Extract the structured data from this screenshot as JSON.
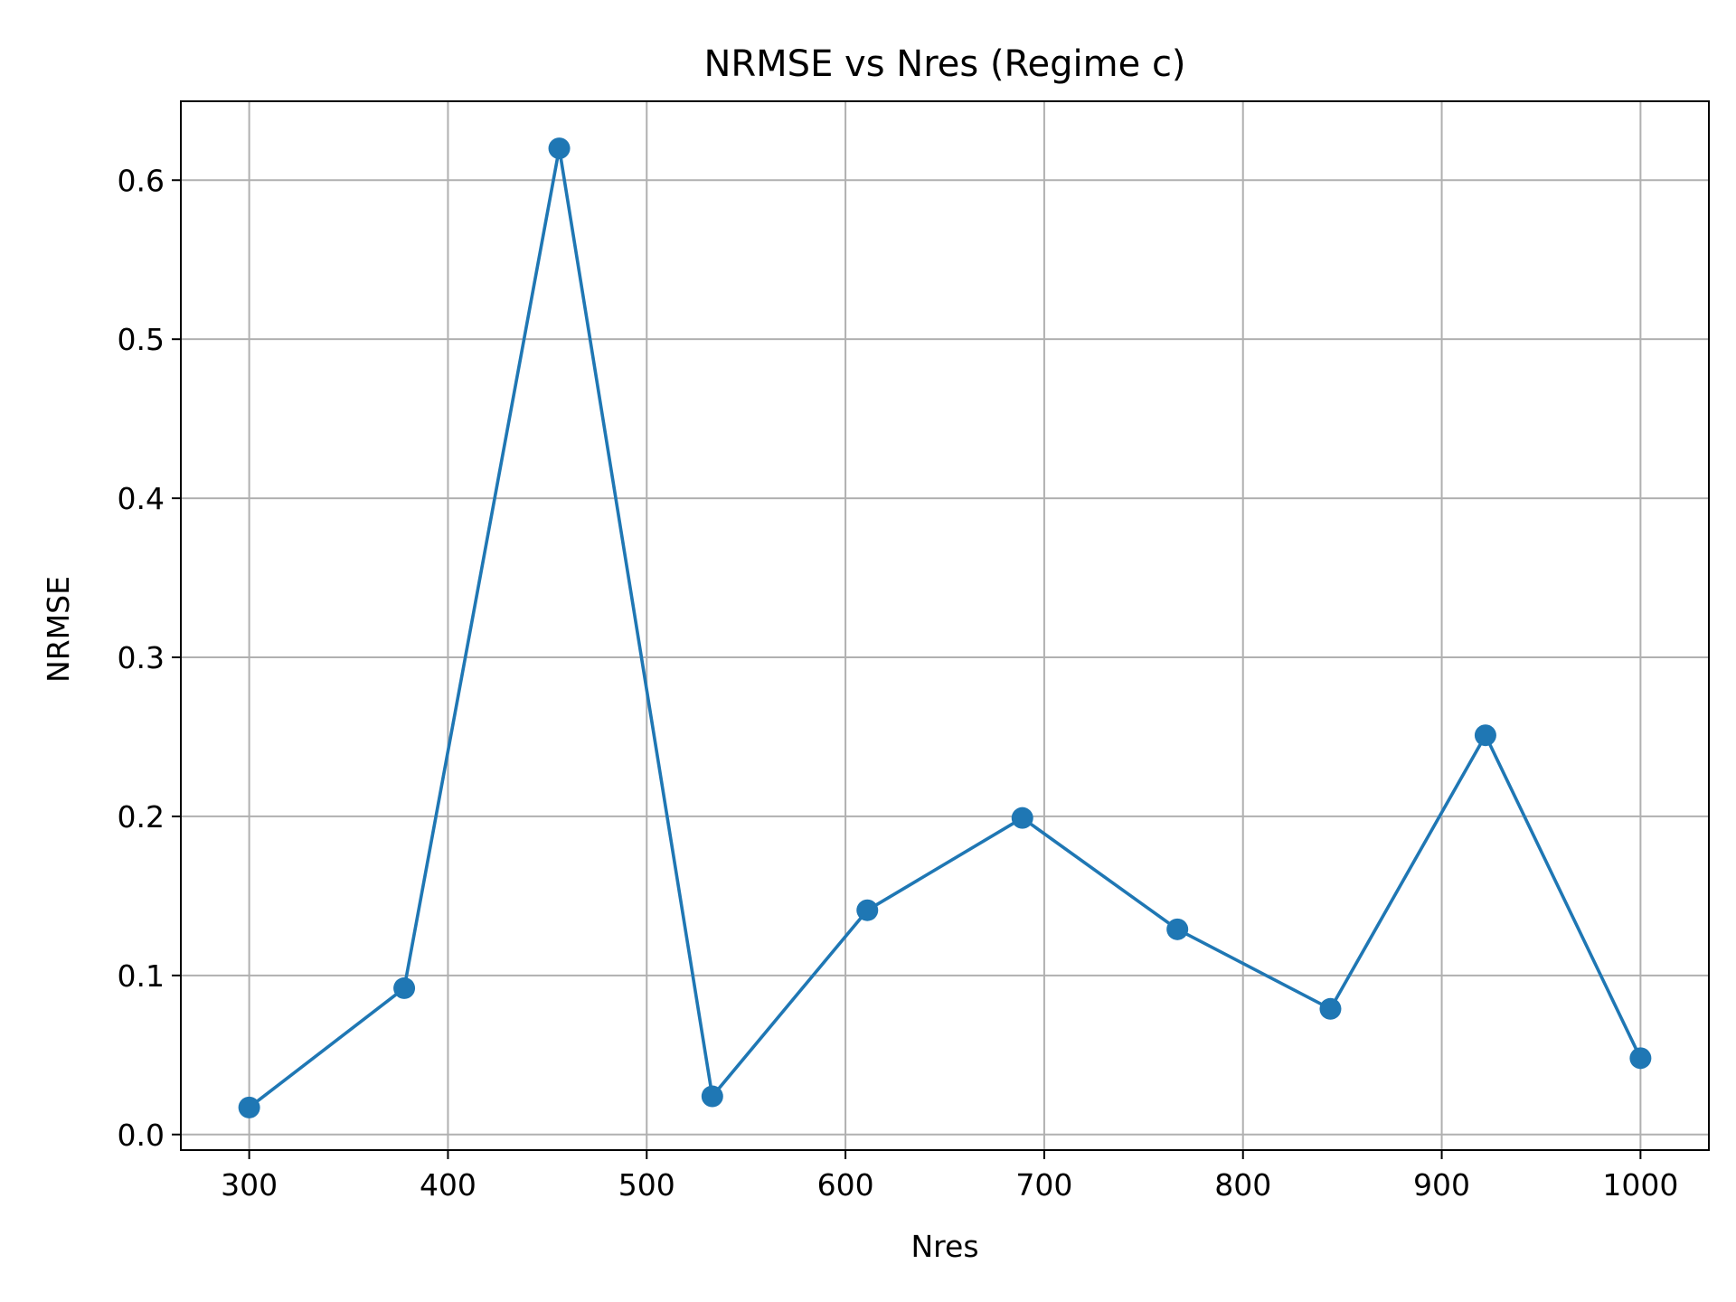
{
  "chart_data": {
    "type": "line",
    "title": "NRMSE vs Nres (Regime c)",
    "xlabel": "Nres",
    "ylabel": "NRMSE",
    "xlim": [
      265.6,
      1034.4
    ],
    "ylim": [
      -0.0098,
      0.6496
    ],
    "grid": true,
    "x_ticks": [
      300,
      400,
      500,
      600,
      700,
      800,
      900,
      1000
    ],
    "x_tick_labels": [
      "300",
      "400",
      "500",
      "600",
      "700",
      "800",
      "900",
      "1000"
    ],
    "y_ticks": [
      0.0,
      0.1,
      0.2,
      0.3,
      0.4,
      0.5,
      0.6
    ],
    "y_tick_labels": [
      "0.0",
      "0.1",
      "0.2",
      "0.3",
      "0.4",
      "0.5",
      "0.6"
    ],
    "series": [
      {
        "color": "#1f77b4",
        "marker": "circle",
        "x": [
          300,
          378,
          456,
          533,
          611,
          689,
          767,
          844,
          922,
          1000
        ],
        "y": [
          0.017,
          0.092,
          0.62,
          0.024,
          0.141,
          0.199,
          0.129,
          0.079,
          0.251,
          0.048
        ]
      }
    ]
  }
}
